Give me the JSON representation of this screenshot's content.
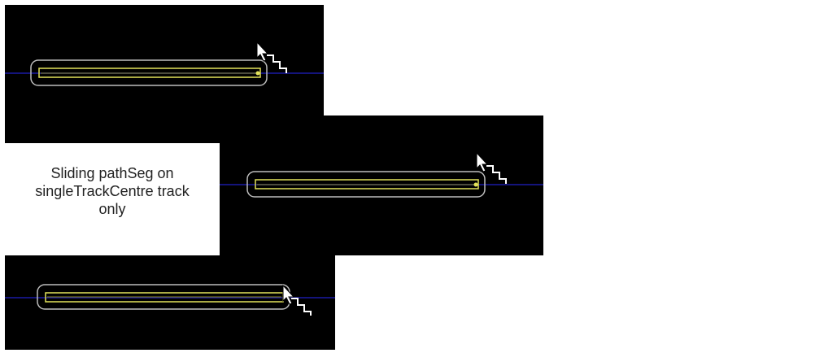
{
  "caption": {
    "line1": "Sliding pathSeg on",
    "line2": "singleTrackCentre track",
    "line3": "only"
  },
  "colors": {
    "canvas_background": "#000000",
    "track_line": "#1a1aa6",
    "selection_outline": "#bdbdbd",
    "path_segment": "#e3e35a",
    "path_segment_inner": "#8a8a2a",
    "cursor": "#ffffff"
  },
  "icons": {
    "cursor": "arrow-cursor-icon",
    "stretch": "stretch-stair-icon"
  }
}
